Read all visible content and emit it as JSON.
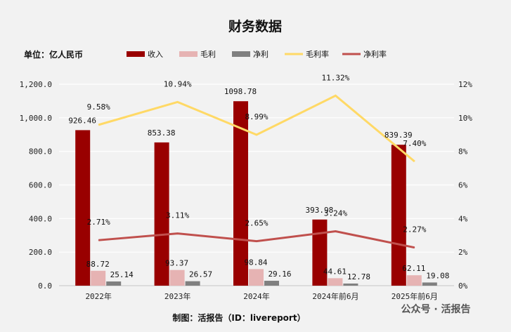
{
  "chart_data": {
    "type": "bar+line",
    "title": "财务数据",
    "unit_label": "单位：亿人民币",
    "categories": [
      "2022年",
      "2023年",
      "2024年",
      "2024年前6月",
      "2025年前6月"
    ],
    "y_left": {
      "range": [
        0,
        1200
      ],
      "ticks": [
        "0.0",
        "200.0",
        "400.0",
        "600.0",
        "800.0",
        "1,000.0",
        "1,200.0"
      ]
    },
    "y_right": {
      "range": [
        0,
        12
      ],
      "ticks": [
        "0%",
        "2%",
        "4%",
        "6%",
        "8%",
        "10%",
        "12%"
      ]
    },
    "grid": true,
    "legend_position": "top",
    "bar_series": [
      {
        "name": "收入",
        "color": "#990000",
        "values": [
          926.46,
          853.38,
          1098.78,
          393.98,
          839.39
        ],
        "labels": [
          "926.46",
          "853.38",
          "1098.78",
          "393.98",
          "839.39"
        ]
      },
      {
        "name": "毛利",
        "color": "#e6b3b3",
        "values": [
          88.72,
          93.37,
          98.84,
          44.61,
          62.11
        ],
        "labels": [
          "88.72",
          "93.37",
          "98.84",
          "44.61",
          "62.11"
        ]
      },
      {
        "name": "净利",
        "color": "#808080",
        "values": [
          25.14,
          26.57,
          29.16,
          12.78,
          19.08
        ],
        "labels": [
          "25.14",
          "26.57",
          "29.16",
          "12.78",
          "19.08"
        ]
      }
    ],
    "line_series": [
      {
        "name": "毛利率",
        "color": "#ffd966",
        "values": [
          9.58,
          10.94,
          8.99,
          11.32,
          7.4
        ],
        "labels": [
          "9.58%",
          "10.94%",
          "8.99%",
          "11.32%",
          "7.40%"
        ]
      },
      {
        "name": "净利率",
        "color": "#c0504d",
        "values": [
          2.71,
          3.11,
          2.65,
          3.24,
          2.27
        ],
        "labels": [
          "2.71%",
          "3.11%",
          "2.65%",
          "3.24%",
          "2.27%"
        ]
      }
    ],
    "footer": "制图：活报告（ID：livereport）"
  },
  "watermark": "公众号 · 活报告"
}
